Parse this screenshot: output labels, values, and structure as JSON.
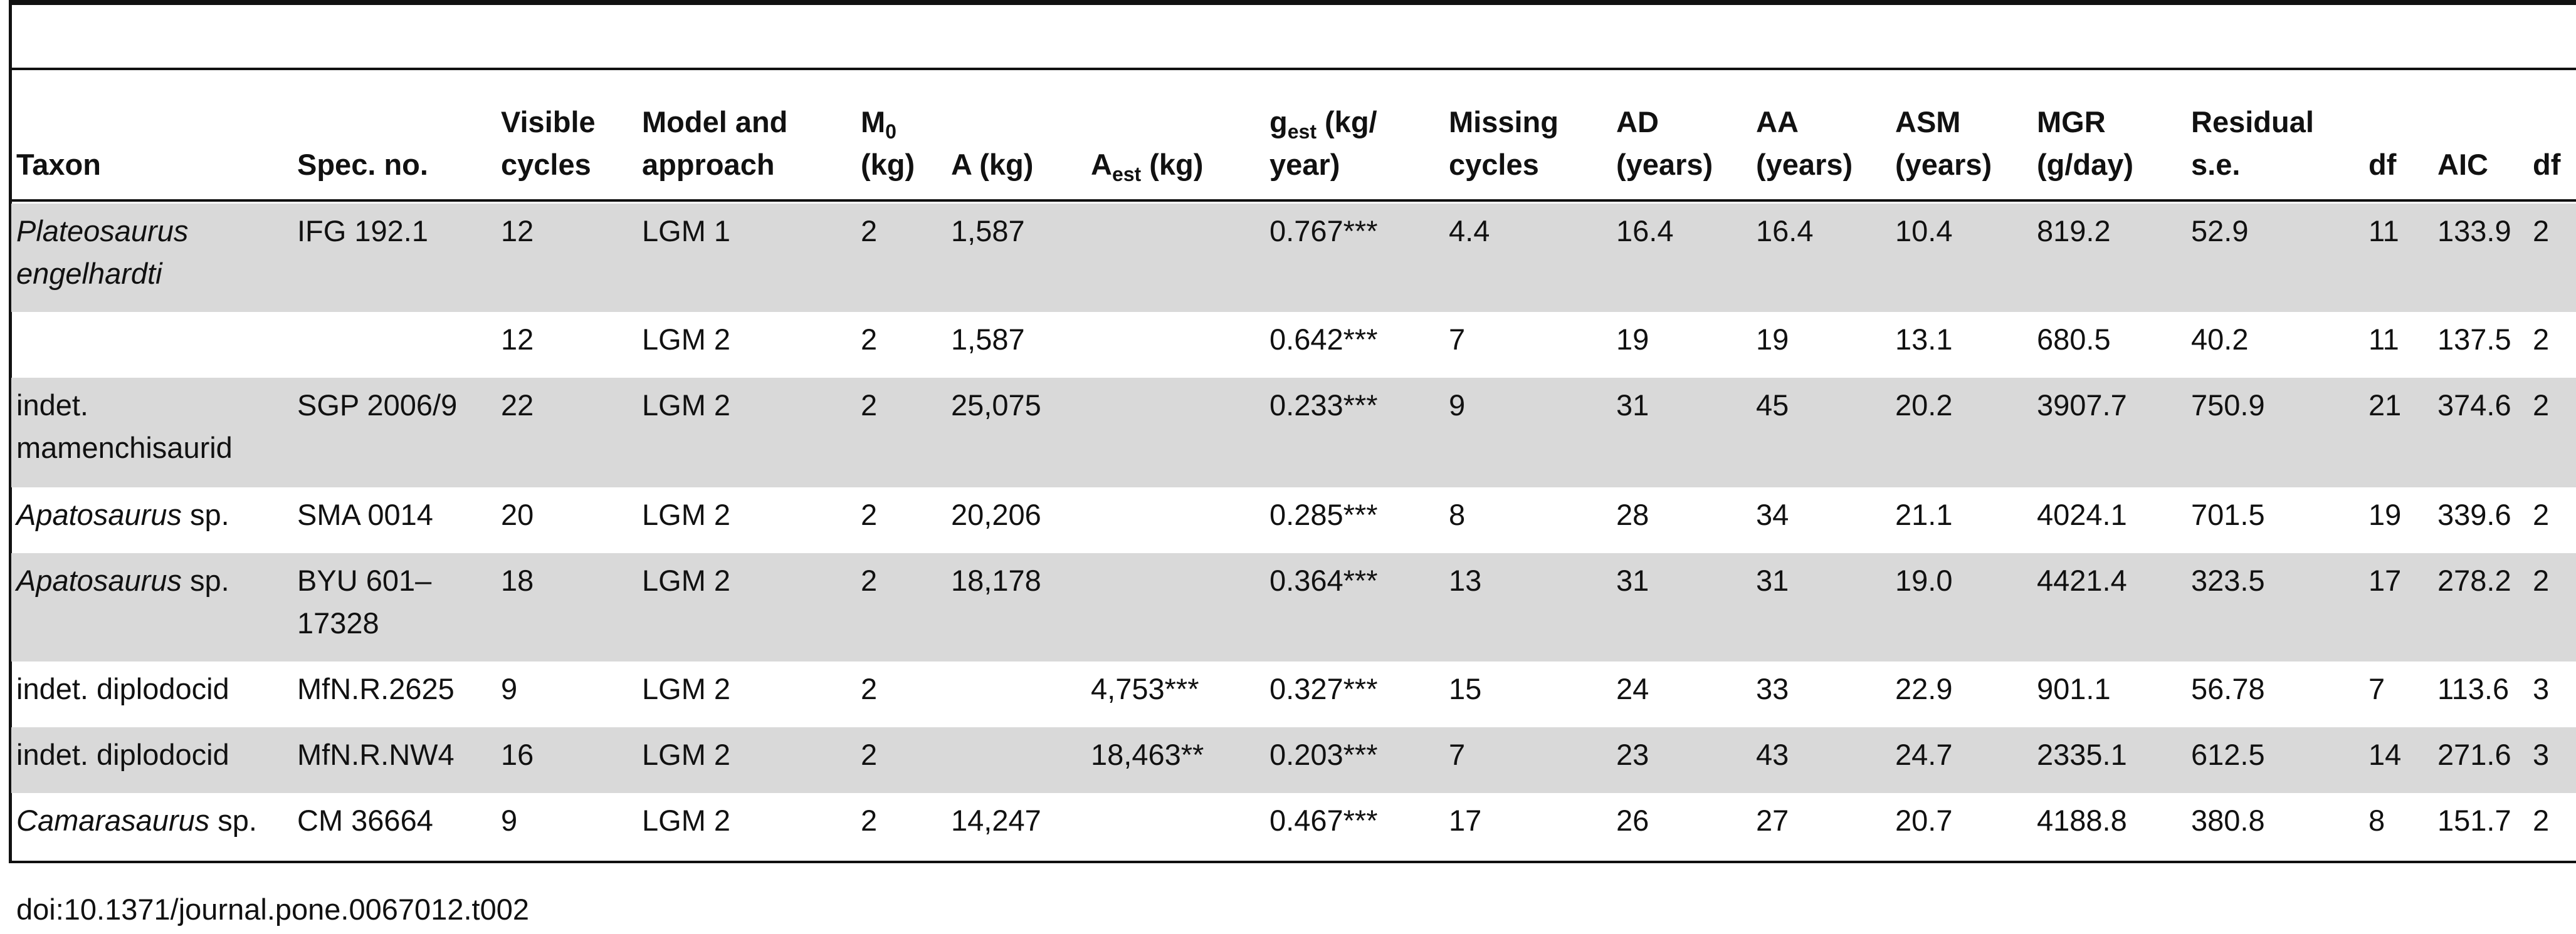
{
  "table": {
    "header": [
      [
        [
          "Taxon"
        ]
      ],
      [
        [
          "Spec. no."
        ]
      ],
      [
        [
          "Visible"
        ],
        [
          "cycles"
        ]
      ],
      [
        [
          "Model and"
        ],
        [
          "approach"
        ]
      ],
      [
        [
          "M",
          {
            "sub": "0"
          }
        ],
        [
          "(kg)"
        ]
      ],
      [
        [
          "A (kg)"
        ]
      ],
      [
        [
          "A",
          {
            "sub": "est"
          },
          " (kg)"
        ]
      ],
      [
        [
          "g",
          {
            "sub": "est"
          },
          " (kg/"
        ],
        [
          "year)"
        ]
      ],
      [
        [
          "Missing"
        ],
        [
          "cycles"
        ]
      ],
      [
        [
          "AD"
        ],
        [
          "(years)"
        ]
      ],
      [
        [
          "AA"
        ],
        [
          "(years)"
        ]
      ],
      [
        [
          "ASM"
        ],
        [
          "(years)"
        ]
      ],
      [
        [
          "MGR"
        ],
        [
          "(g/day)"
        ]
      ],
      [
        [
          "Residual"
        ],
        [
          "s.e."
        ]
      ],
      [
        [
          "df"
        ]
      ],
      [
        [
          "AIC"
        ]
      ],
      [
        [
          "df"
        ]
      ]
    ],
    "rows": [
      [
        {
          "italic": "Plateosaurus engelhardti"
        },
        "IFG 192.1",
        "12",
        "LGM 1",
        "2",
        "1,587",
        null,
        "0.767***",
        "4.4",
        "16.4",
        "16.4",
        "10.4",
        "819.2",
        "52.9",
        "11",
        "133.9",
        "2"
      ],
      [
        null,
        null,
        "12",
        "LGM 2",
        "2",
        "1,587",
        null,
        "0.642***",
        "7",
        "19",
        "19",
        "13.1",
        "680.5",
        "40.2",
        "11",
        "137.5",
        "2"
      ],
      [
        {
          "plain": "indet. mamenchisaurid"
        },
        "SGP 2006/9",
        "22",
        "LGM 2",
        "2",
        "25,075",
        null,
        "0.233***",
        "9",
        "31",
        "45",
        "20.2",
        "3907.7",
        "750.9",
        "21",
        "374.6",
        "2"
      ],
      [
        {
          "italic": "Apatosaurus",
          "plain": " sp."
        },
        "SMA 0014",
        "20",
        "LGM 2",
        "2",
        "20,206",
        null,
        "0.285***",
        "8",
        "28",
        "34",
        "21.1",
        "4024.1",
        "701.5",
        "19",
        "339.6",
        "2"
      ],
      [
        {
          "italic": "Apatosaurus",
          "plain": " sp."
        },
        "BYU 601–17328",
        "18",
        "LGM 2",
        "2",
        "18,178",
        null,
        "0.364***",
        "13",
        "31",
        "31",
        "19.0",
        "4421.4",
        "323.5",
        "17",
        "278.2",
        "2"
      ],
      [
        {
          "plain": "indet. diplodocid"
        },
        "MfN.R.2625",
        "9",
        "LGM 2",
        "2",
        null,
        "4,753***",
        "0.327***",
        "15",
        "24",
        "33",
        "22.9",
        "901.1",
        "56.78",
        "7",
        "113.6",
        "3"
      ],
      [
        {
          "plain": "indet. diplodocid"
        },
        "MfN.R.NW4",
        "16",
        "LGM 2",
        "2",
        null,
        "18,463**",
        "0.203***",
        "7",
        "23",
        "43",
        "24.7",
        "2335.1",
        "612.5",
        "14",
        "271.6",
        "3"
      ],
      [
        {
          "italic": "Camarasaurus",
          "plain": " sp."
        },
        "CM 36664",
        "9",
        "LGM 2",
        "2",
        "14,247",
        null,
        "0.467***",
        "17",
        "26",
        "27",
        "20.7",
        "4188.8",
        "380.8",
        "8",
        "151.7",
        "2"
      ]
    ],
    "footer": "doi:10.1371/journal.pone.0067012.t002"
  }
}
